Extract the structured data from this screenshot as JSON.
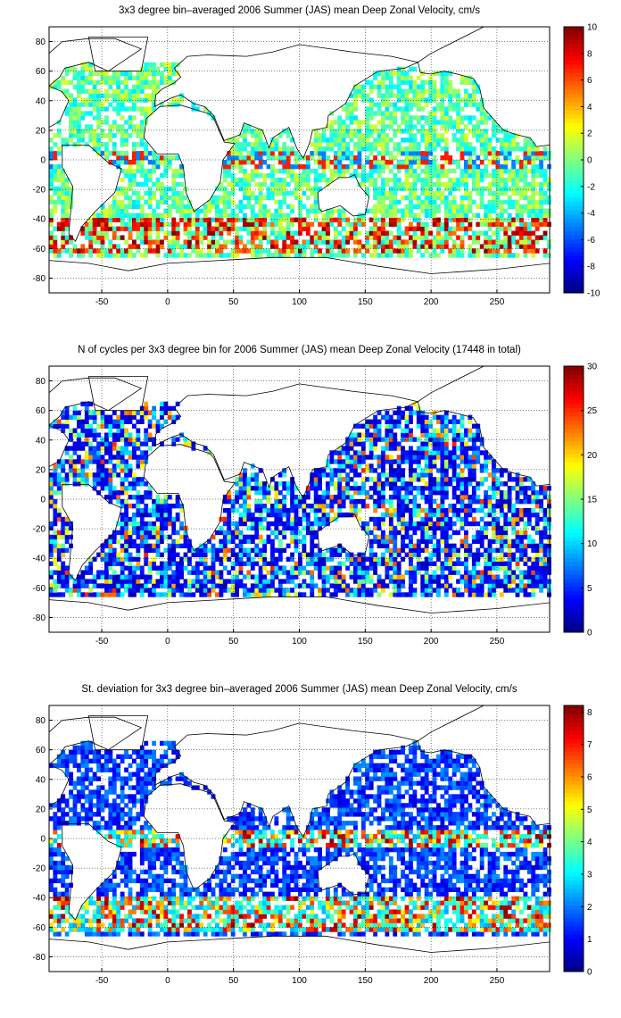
{
  "chart_data": [
    {
      "type": "heatmap",
      "title": "3x3 degree bin–averaged 2006 Summer (JAS) mean Deep Zonal Velocity, cm/s",
      "xlim": [
        -90,
        290
      ],
      "ylim": [
        -90,
        90
      ],
      "xticks": [
        "-50",
        "0",
        "50",
        "100",
        "150",
        "200",
        "250"
      ],
      "yticks": [
        "80",
        "60",
        "40",
        "20",
        "0",
        "-20",
        "-40",
        "-60",
        "-80"
      ],
      "grid": true,
      "colorbar": {
        "min": -10,
        "max": 10,
        "ticks": [
          "10",
          "8",
          "6",
          "4",
          "2",
          "0",
          "-2",
          "-4",
          "-6",
          "-8",
          "-10"
        ]
      },
      "bin_degrees": 3,
      "colormap": "jet"
    },
    {
      "type": "heatmap",
      "title": "N of cycles per 3x3 degree bin for 2006 Summer (JAS) mean Deep Zonal Velocity (17448 in total)",
      "xlim": [
        -90,
        290
      ],
      "ylim": [
        -90,
        90
      ],
      "xticks": [
        "-50",
        "0",
        "50",
        "100",
        "150",
        "200",
        "250"
      ],
      "yticks": [
        "80",
        "60",
        "40",
        "20",
        "0",
        "-20",
        "-40",
        "-60",
        "-80"
      ],
      "grid": true,
      "colorbar": {
        "min": 0,
        "max": 30,
        "ticks": [
          "30",
          "25",
          "20",
          "15",
          "10",
          "5",
          "0"
        ]
      },
      "bin_degrees": 3,
      "colormap": "jet"
    },
    {
      "type": "heatmap",
      "title": "St. deviation for 3x3 degree bin–averaged 2006 Summer (JAS) mean Deep Zonal Velocity, cm/s",
      "xlim": [
        -90,
        290
      ],
      "ylim": [
        -90,
        90
      ],
      "xticks": [
        "-50",
        "0",
        "50",
        "100",
        "150",
        "200",
        "250"
      ],
      "yticks": [
        "80",
        "60",
        "40",
        "20",
        "0",
        "-20",
        "-40",
        "-60",
        "-80"
      ],
      "grid": true,
      "colorbar": {
        "min": 0,
        "max": 8.2,
        "ticks": [
          "8",
          "7",
          "6",
          "5",
          "4",
          "3",
          "2",
          "1",
          "0"
        ]
      },
      "bin_degrees": 3,
      "colormap": "jet"
    }
  ]
}
